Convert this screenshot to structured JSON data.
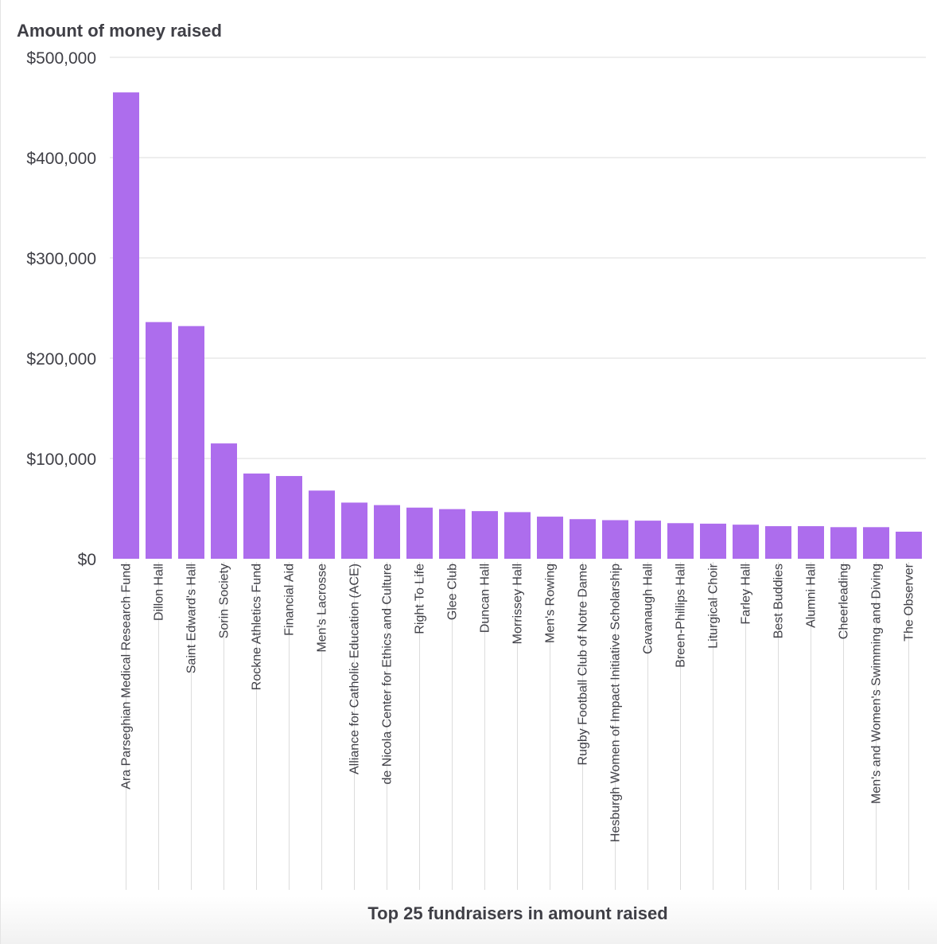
{
  "chart_data": {
    "type": "bar",
    "title": "",
    "ylabel": "Amount of money raised",
    "xlabel": "Top 25 fundraisers in amount raised",
    "ylim": [
      0,
      500000
    ],
    "yticks": [
      0,
      100000,
      200000,
      300000,
      400000,
      500000
    ],
    "ytick_labels": [
      "$0",
      "$100,000",
      "$200,000",
      "$300,000",
      "$400,000",
      "$500,000"
    ],
    "grid": true,
    "bar_color": "#ad6ded",
    "categories": [
      "Ara Parseghian Medical Research Fund",
      "Dillon Hall",
      "Saint Edward's Hall",
      "Sorin Society",
      "Rockne Athletics Fund",
      "Financial Aid",
      "Men's Lacrosse",
      "Alliance for Catholic Education (ACE)",
      "de Nicola Center for Ethics and Culture",
      "Right To Life",
      "Glee Club",
      "Duncan Hall",
      "Morrissey Hall",
      "Men's Rowing",
      "Rugby Football Club of Notre Dame",
      "Hesburgh Women of Impact Initiative Scholarship",
      "Cavanaugh Hall",
      "Breen-Phillips Hall",
      "Liturgical Choir",
      "Farley Hall",
      "Best Buddies",
      "Alumni Hall",
      "Cheerleading",
      "Men's and Women's Swimming and Diving",
      "The Observer"
    ],
    "values": [
      465000,
      236000,
      232000,
      115000,
      85000,
      82500,
      68000,
      56000,
      53500,
      51000,
      49500,
      47500,
      46500,
      42000,
      39500,
      38500,
      38000,
      35500,
      35000,
      34000,
      32500,
      32500,
      31500,
      31500,
      27000
    ]
  }
}
